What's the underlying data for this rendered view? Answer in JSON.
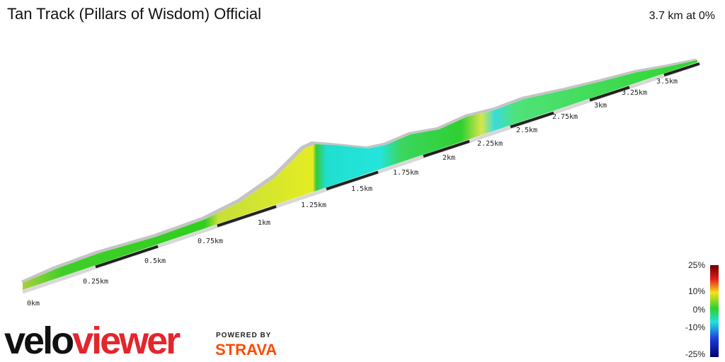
{
  "header": {
    "title": "Tan Track (Pillars of Wisdom) Official",
    "summary": "3.7 km at 0%"
  },
  "distance_markers": [
    "0km",
    "0.25km",
    "0.5km",
    "0.75km",
    "1km",
    "1.25km",
    "1.5km",
    "1.75km",
    "2km",
    "2.25km",
    "2.5km",
    "2.75km",
    "3km",
    "3.25km",
    "3.5km"
  ],
  "legend": {
    "labels": [
      "25%",
      "10%",
      "0%",
      "-10%",
      "-25%"
    ]
  },
  "branding": {
    "logo_dark": "velo",
    "logo_red": "viewer",
    "powered_by": "POWERED BY",
    "partner": "STRAVA"
  }
}
